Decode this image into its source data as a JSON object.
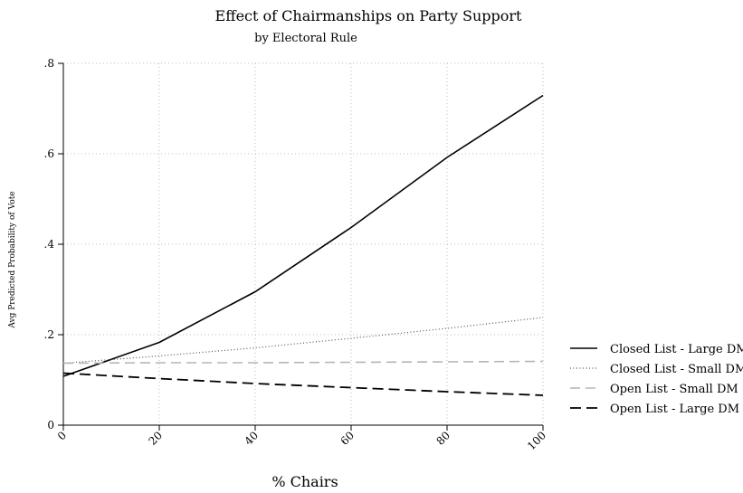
{
  "chart_data": {
    "type": "line",
    "title": "Effect of Chairmanships on Party Support",
    "subtitle": "by Electoral Rule",
    "xlabel": "% Chairs",
    "ylabel": "Avg Predicted Probability of Vote",
    "xlim": [
      0,
      100
    ],
    "ylim": [
      0,
      0.8
    ],
    "x_ticks": [
      "0",
      "20",
      "40",
      "60",
      "80",
      "100"
    ],
    "y_ticks": [
      "0",
      ".2",
      ".4",
      ".6",
      ".8"
    ],
    "x": [
      0,
      20,
      40,
      60,
      80,
      100
    ],
    "grid": true,
    "legend_position": "right",
    "series": [
      {
        "name": "Closed List - Large DM",
        "values": [
          0.108,
          0.183,
          0.295,
          0.437,
          0.592,
          0.729
        ],
        "style": "solid",
        "color": "#000000"
      },
      {
        "name": "Closed List - Small DM",
        "values": [
          0.137,
          0.153,
          0.171,
          0.192,
          0.214,
          0.238
        ],
        "style": "dotted",
        "color": "#555555"
      },
      {
        "name": "Open List - Small DM",
        "values": [
          0.137,
          0.138,
          0.138,
          0.139,
          0.14,
          0.141
        ],
        "style": "dashed-light",
        "color": "#b5b5b5"
      },
      {
        "name": "Open List - Large DM",
        "values": [
          0.115,
          0.103,
          0.092,
          0.083,
          0.074,
          0.066
        ],
        "style": "dashed",
        "color": "#000000"
      }
    ]
  }
}
